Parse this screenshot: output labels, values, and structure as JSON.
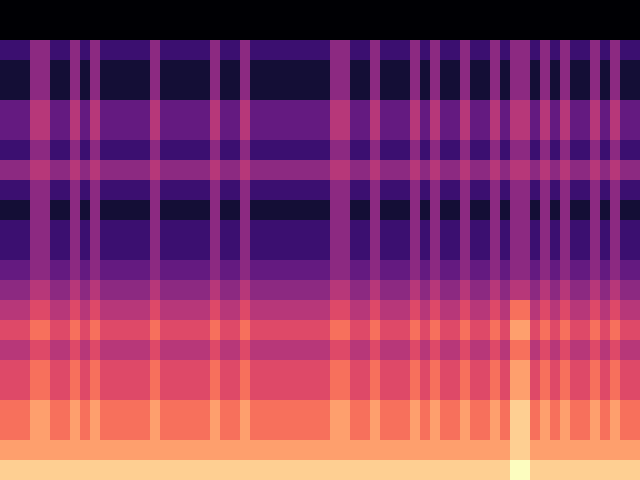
{
  "chart_data": {
    "type": "heatmap",
    "color": "magma",
    "tick_labels": false,
    "zlim": [
      0,
      10
    ],
    "values": [
      [
        0,
        0,
        0,
        0,
        0,
        0,
        0,
        0,
        0,
        0,
        0,
        0,
        0,
        0,
        0,
        0,
        0,
        0,
        0,
        0,
        0,
        0,
        0,
        0,
        0,
        0,
        0,
        0,
        0,
        0,
        0,
        0,
        0,
        0,
        0,
        0,
        0,
        0,
        0,
        0,
        0,
        0,
        0,
        0,
        0,
        0,
        0,
        0,
        0,
        0,
        0,
        0,
        0,
        0,
        0,
        0,
        0,
        0,
        0,
        0,
        0,
        0,
        0,
        0
      ],
      [
        0,
        0,
        0,
        0,
        0,
        0,
        0,
        0,
        0,
        0,
        0,
        0,
        0,
        0,
        0,
        0,
        0,
        0,
        0,
        0,
        0,
        0,
        0,
        0,
        0,
        0,
        0,
        0,
        0,
        0,
        0,
        0,
        0,
        0,
        0,
        0,
        0,
        0,
        0,
        0,
        0,
        0,
        0,
        0,
        0,
        0,
        0,
        0,
        0,
        0,
        0,
        0,
        0,
        0,
        0,
        0,
        0,
        0,
        0,
        0,
        0,
        0,
        0,
        0
      ],
      [
        2,
        2,
        2,
        4,
        4,
        2,
        2,
        4,
        2,
        4,
        2,
        2,
        2,
        2,
        2,
        4,
        2,
        2,
        2,
        2,
        2,
        4,
        2,
        2,
        4,
        2,
        2,
        2,
        2,
        2,
        2,
        2,
        2,
        4,
        4,
        2,
        2,
        4,
        2,
        2,
        2,
        4,
        2,
        4,
        2,
        2,
        4,
        2,
        2,
        4,
        2,
        4,
        4,
        2,
        4,
        2,
        4,
        2,
        2,
        4,
        2,
        4,
        2,
        2
      ],
      [
        1,
        1,
        1,
        4,
        4,
        1,
        1,
        4,
        1,
        4,
        1,
        1,
        1,
        1,
        1,
        4,
        1,
        1,
        1,
        1,
        1,
        4,
        1,
        1,
        4,
        1,
        1,
        1,
        1,
        1,
        1,
        1,
        1,
        4,
        4,
        1,
        1,
        4,
        1,
        1,
        1,
        4,
        1,
        4,
        1,
        1,
        4,
        1,
        1,
        4,
        1,
        4,
        4,
        1,
        4,
        1,
        4,
        1,
        1,
        4,
        1,
        4,
        1,
        1
      ],
      [
        1,
        1,
        1,
        4,
        4,
        1,
        1,
        4,
        1,
        4,
        1,
        1,
        1,
        1,
        1,
        4,
        1,
        1,
        1,
        1,
        1,
        4,
        1,
        1,
        4,
        1,
        1,
        1,
        1,
        1,
        1,
        1,
        1,
        4,
        4,
        1,
        1,
        4,
        1,
        1,
        1,
        4,
        1,
        4,
        1,
        1,
        4,
        1,
        1,
        4,
        1,
        4,
        4,
        1,
        4,
        1,
        4,
        1,
        1,
        4,
        1,
        4,
        1,
        1
      ],
      [
        3,
        3,
        3,
        5,
        5,
        3,
        3,
        5,
        3,
        5,
        3,
        3,
        3,
        3,
        3,
        5,
        3,
        3,
        3,
        3,
        3,
        5,
        3,
        3,
        5,
        3,
        3,
        3,
        3,
        3,
        3,
        3,
        3,
        5,
        5,
        3,
        3,
        5,
        3,
        3,
        3,
        5,
        3,
        5,
        3,
        3,
        5,
        3,
        3,
        5,
        3,
        5,
        5,
        3,
        5,
        3,
        5,
        3,
        3,
        5,
        3,
        5,
        3,
        3
      ],
      [
        3,
        3,
        3,
        5,
        5,
        3,
        3,
        5,
        3,
        5,
        3,
        3,
        3,
        3,
        3,
        5,
        3,
        3,
        3,
        3,
        3,
        5,
        3,
        3,
        5,
        3,
        3,
        3,
        3,
        3,
        3,
        3,
        3,
        5,
        5,
        3,
        3,
        5,
        3,
        3,
        3,
        5,
        3,
        5,
        3,
        3,
        5,
        3,
        3,
        5,
        3,
        5,
        5,
        3,
        5,
        3,
        5,
        3,
        3,
        5,
        3,
        5,
        3,
        3
      ],
      [
        2,
        2,
        2,
        4,
        4,
        2,
        2,
        4,
        2,
        4,
        2,
        2,
        2,
        2,
        2,
        4,
        2,
        2,
        2,
        2,
        2,
        4,
        2,
        2,
        4,
        2,
        2,
        2,
        2,
        2,
        2,
        2,
        2,
        4,
        4,
        2,
        2,
        4,
        2,
        2,
        2,
        4,
        2,
        4,
        2,
        2,
        4,
        2,
        2,
        4,
        2,
        4,
        4,
        2,
        4,
        2,
        4,
        2,
        2,
        4,
        2,
        4,
        2,
        2
      ],
      [
        4,
        4,
        4,
        5,
        5,
        4,
        4,
        5,
        4,
        5,
        4,
        4,
        4,
        4,
        4,
        5,
        4,
        4,
        4,
        4,
        4,
        5,
        4,
        4,
        5,
        4,
        4,
        4,
        4,
        4,
        4,
        4,
        4,
        5,
        5,
        4,
        4,
        5,
        4,
        4,
        4,
        5,
        4,
        5,
        4,
        4,
        5,
        4,
        4,
        5,
        4,
        5,
        5,
        4,
        5,
        4,
        5,
        4,
        4,
        5,
        4,
        5,
        4,
        4
      ],
      [
        2,
        2,
        2,
        4,
        4,
        2,
        2,
        4,
        2,
        4,
        2,
        2,
        2,
        2,
        2,
        4,
        2,
        2,
        2,
        2,
        2,
        4,
        2,
        2,
        4,
        2,
        2,
        2,
        2,
        2,
        2,
        2,
        2,
        4,
        4,
        2,
        2,
        4,
        2,
        2,
        2,
        4,
        2,
        4,
        2,
        2,
        4,
        2,
        2,
        4,
        2,
        4,
        4,
        2,
        4,
        2,
        4,
        2,
        2,
        4,
        2,
        4,
        2,
        2
      ],
      [
        1,
        1,
        1,
        4,
        4,
        1,
        1,
        4,
        1,
        4,
        1,
        1,
        1,
        1,
        1,
        4,
        1,
        1,
        1,
        1,
        1,
        4,
        1,
        1,
        4,
        1,
        1,
        1,
        1,
        1,
        1,
        1,
        1,
        4,
        4,
        1,
        1,
        4,
        1,
        1,
        1,
        4,
        1,
        4,
        1,
        1,
        4,
        1,
        1,
        4,
        1,
        4,
        4,
        1,
        4,
        1,
        4,
        1,
        1,
        4,
        1,
        4,
        1,
        1
      ],
      [
        2,
        2,
        2,
        4,
        4,
        2,
        2,
        4,
        2,
        4,
        2,
        2,
        2,
        2,
        2,
        4,
        2,
        2,
        2,
        2,
        2,
        4,
        2,
        2,
        4,
        2,
        2,
        2,
        2,
        2,
        2,
        2,
        2,
        4,
        4,
        2,
        2,
        4,
        2,
        2,
        2,
        4,
        2,
        4,
        2,
        2,
        4,
        2,
        2,
        4,
        2,
        4,
        4,
        2,
        4,
        2,
        4,
        2,
        2,
        4,
        2,
        4,
        2,
        2
      ],
      [
        2,
        2,
        2,
        4,
        4,
        2,
        2,
        4,
        2,
        4,
        2,
        2,
        2,
        2,
        2,
        4,
        2,
        2,
        2,
        2,
        2,
        4,
        2,
        2,
        4,
        2,
        2,
        2,
        2,
        2,
        2,
        2,
        2,
        4,
        4,
        2,
        2,
        4,
        2,
        2,
        2,
        4,
        2,
        4,
        2,
        2,
        4,
        2,
        2,
        4,
        2,
        4,
        4,
        2,
        4,
        2,
        4,
        2,
        2,
        4,
        2,
        4,
        2,
        2
      ],
      [
        3,
        3,
        3,
        4,
        4,
        3,
        3,
        4,
        3,
        4,
        3,
        3,
        3,
        3,
        3,
        4,
        3,
        3,
        3,
        3,
        3,
        4,
        3,
        3,
        4,
        3,
        3,
        3,
        3,
        3,
        3,
        3,
        3,
        4,
        4,
        3,
        3,
        4,
        3,
        3,
        3,
        4,
        3,
        4,
        3,
        3,
        4,
        3,
        3,
        4,
        3,
        4,
        4,
        3,
        4,
        3,
        4,
        3,
        3,
        4,
        3,
        4,
        3,
        3
      ],
      [
        4,
        4,
        4,
        5,
        5,
        4,
        4,
        5,
        4,
        5,
        4,
        4,
        4,
        4,
        4,
        5,
        4,
        4,
        4,
        4,
        4,
        5,
        4,
        4,
        5,
        4,
        4,
        4,
        4,
        4,
        4,
        4,
        4,
        5,
        5,
        4,
        4,
        5,
        4,
        4,
        4,
        5,
        4,
        5,
        4,
        4,
        5,
        4,
        4,
        5,
        4,
        5,
        5,
        4,
        5,
        4,
        5,
        4,
        4,
        5,
        4,
        5,
        4,
        4
      ],
      [
        5,
        5,
        5,
        6,
        6,
        5,
        5,
        6,
        5,
        6,
        5,
        5,
        5,
        5,
        5,
        6,
        5,
        5,
        5,
        5,
        5,
        6,
        5,
        5,
        6,
        5,
        5,
        5,
        5,
        5,
        5,
        5,
        5,
        6,
        6,
        5,
        5,
        6,
        5,
        5,
        5,
        6,
        5,
        6,
        5,
        5,
        6,
        5,
        5,
        6,
        5,
        7,
        7,
        5,
        6,
        5,
        6,
        5,
        5,
        6,
        5,
        6,
        5,
        5
      ],
      [
        6,
        6,
        6,
        7,
        7,
        6,
        6,
        7,
        6,
        7,
        6,
        6,
        6,
        6,
        6,
        7,
        6,
        6,
        6,
        6,
        6,
        7,
        6,
        6,
        7,
        6,
        6,
        6,
        6,
        6,
        6,
        6,
        6,
        7,
        7,
        6,
        6,
        7,
        6,
        6,
        6,
        7,
        6,
        7,
        6,
        6,
        7,
        6,
        6,
        7,
        6,
        8,
        8,
        6,
        7,
        6,
        7,
        6,
        6,
        7,
        6,
        7,
        6,
        6
      ],
      [
        5,
        5,
        5,
        6,
        6,
        5,
        5,
        6,
        5,
        6,
        5,
        5,
        5,
        5,
        5,
        6,
        5,
        5,
        5,
        5,
        5,
        6,
        5,
        5,
        6,
        5,
        5,
        5,
        5,
        5,
        5,
        5,
        5,
        6,
        6,
        5,
        5,
        6,
        5,
        5,
        5,
        6,
        5,
        6,
        5,
        5,
        6,
        5,
        5,
        6,
        5,
        7,
        7,
        5,
        6,
        5,
        6,
        5,
        5,
        6,
        5,
        6,
        5,
        5
      ],
      [
        6,
        6,
        6,
        7,
        7,
        6,
        6,
        7,
        6,
        7,
        6,
        6,
        6,
        6,
        6,
        7,
        6,
        6,
        6,
        6,
        6,
        7,
        6,
        6,
        7,
        6,
        6,
        6,
        6,
        6,
        6,
        6,
        6,
        7,
        7,
        6,
        6,
        7,
        6,
        6,
        6,
        7,
        6,
        7,
        6,
        6,
        7,
        6,
        6,
        7,
        6,
        8,
        8,
        6,
        7,
        6,
        7,
        6,
        6,
        7,
        6,
        7,
        6,
        6
      ],
      [
        6,
        6,
        6,
        7,
        7,
        6,
        6,
        7,
        6,
        7,
        6,
        6,
        6,
        6,
        6,
        7,
        6,
        6,
        6,
        6,
        6,
        7,
        6,
        6,
        7,
        6,
        6,
        6,
        6,
        6,
        6,
        6,
        6,
        7,
        7,
        6,
        6,
        7,
        6,
        6,
        6,
        7,
        6,
        7,
        6,
        6,
        7,
        6,
        6,
        7,
        6,
        8,
        8,
        6,
        7,
        6,
        7,
        6,
        6,
        7,
        6,
        7,
        6,
        6
      ],
      [
        7,
        7,
        7,
        8,
        8,
        7,
        7,
        8,
        7,
        8,
        7,
        7,
        7,
        7,
        7,
        8,
        7,
        7,
        7,
        7,
        7,
        8,
        7,
        7,
        8,
        7,
        7,
        7,
        7,
        7,
        7,
        7,
        7,
        8,
        8,
        7,
        7,
        8,
        7,
        7,
        7,
        8,
        7,
        8,
        7,
        7,
        8,
        7,
        7,
        8,
        7,
        9,
        9,
        7,
        8,
        7,
        8,
        7,
        7,
        8,
        7,
        8,
        7,
        7
      ],
      [
        7,
        7,
        7,
        8,
        8,
        7,
        7,
        8,
        7,
        8,
        7,
        7,
        7,
        7,
        7,
        8,
        7,
        7,
        7,
        7,
        7,
        8,
        7,
        7,
        8,
        7,
        7,
        7,
        7,
        7,
        7,
        7,
        7,
        8,
        8,
        7,
        7,
        8,
        7,
        7,
        7,
        8,
        7,
        8,
        7,
        7,
        8,
        7,
        7,
        8,
        7,
        9,
        9,
        7,
        8,
        7,
        8,
        7,
        7,
        8,
        7,
        8,
        7,
        7
      ],
      [
        8,
        8,
        8,
        8,
        8,
        8,
        8,
        8,
        8,
        8,
        8,
        8,
        8,
        8,
        8,
        8,
        8,
        8,
        8,
        8,
        8,
        8,
        8,
        8,
        8,
        8,
        8,
        8,
        8,
        8,
        8,
        8,
        8,
        8,
        8,
        8,
        8,
        8,
        8,
        8,
        8,
        8,
        8,
        8,
        8,
        8,
        8,
        8,
        8,
        8,
        8,
        9,
        9,
        8,
        8,
        8,
        8,
        8,
        8,
        8,
        8,
        8,
        8,
        8
      ],
      [
        9,
        9,
        9,
        9,
        9,
        9,
        9,
        9,
        9,
        9,
        9,
        9,
        9,
        9,
        9,
        9,
        9,
        9,
        9,
        9,
        9,
        9,
        9,
        9,
        9,
        9,
        9,
        9,
        9,
        9,
        9,
        9,
        9,
        9,
        9,
        9,
        9,
        9,
        9,
        9,
        9,
        9,
        9,
        9,
        9,
        9,
        9,
        9,
        9,
        9,
        9,
        10,
        10,
        9,
        9,
        9,
        9,
        9,
        9,
        9,
        9,
        9,
        9,
        9
      ]
    ]
  }
}
